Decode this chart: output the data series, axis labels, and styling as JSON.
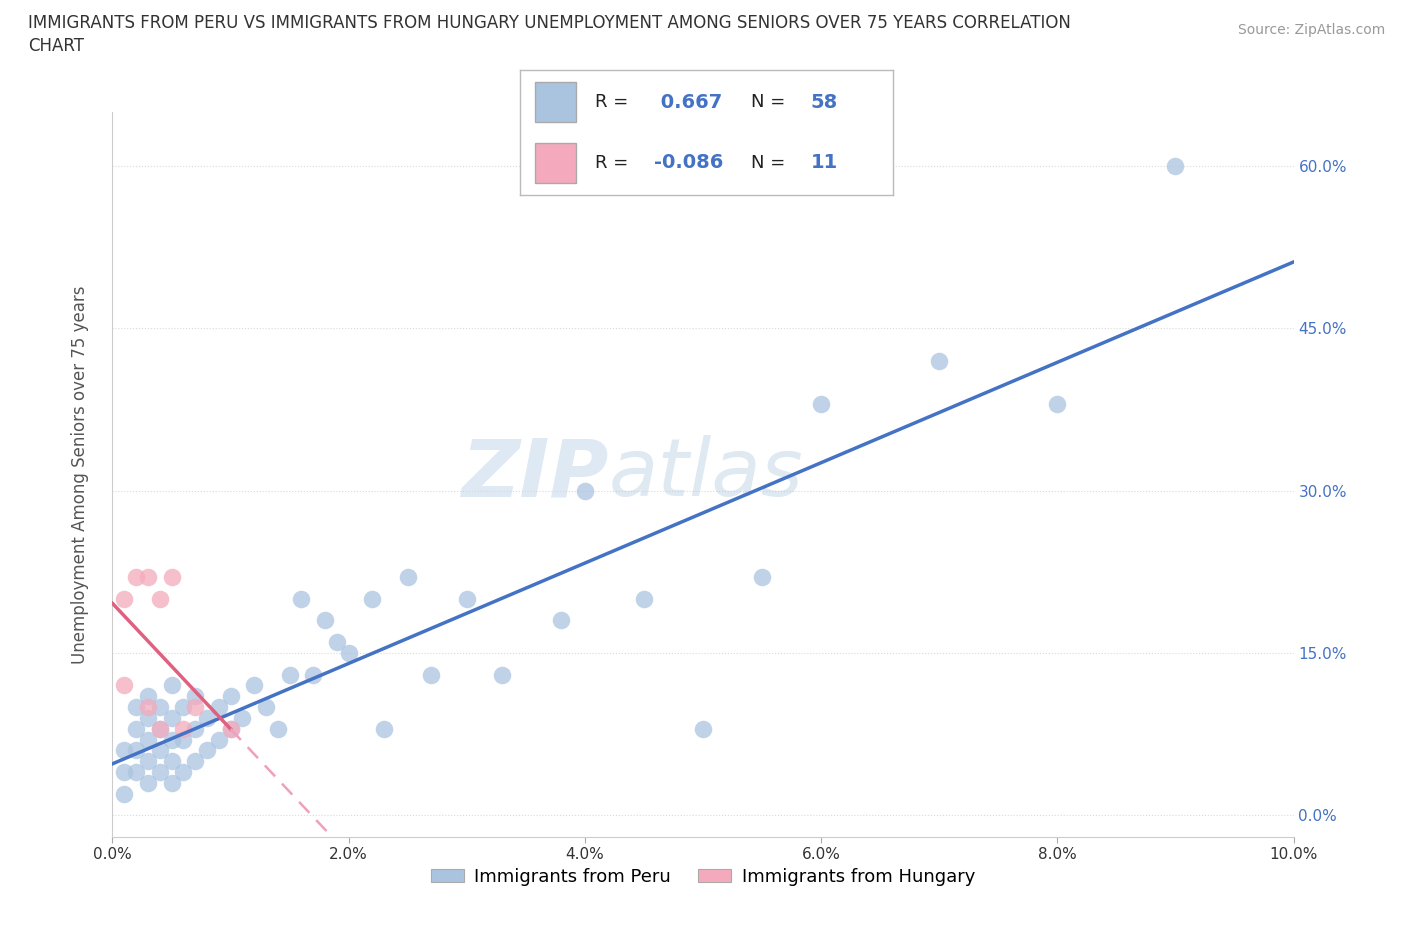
{
  "title_line1": "IMMIGRANTS FROM PERU VS IMMIGRANTS FROM HUNGARY UNEMPLOYMENT AMONG SENIORS OVER 75 YEARS CORRELATION",
  "title_line2": "CHART",
  "source": "Source: ZipAtlas.com",
  "ylabel": "Unemployment Among Seniors over 75 years",
  "xlim": [
    0.0,
    0.1
  ],
  "ylim": [
    -0.02,
    0.65
  ],
  "x_ticks": [
    0.0,
    0.02,
    0.04,
    0.06,
    0.08,
    0.1
  ],
  "x_tick_labels": [
    "0.0%",
    "2.0%",
    "4.0%",
    "6.0%",
    "8.0%",
    "10.0%"
  ],
  "y_ticks": [
    0.0,
    0.15,
    0.3,
    0.45,
    0.6
  ],
  "y_tick_labels": [
    "0.0%",
    "15.0%",
    "30.0%",
    "45.0%",
    "60.0%"
  ],
  "peru_color": "#aac4e0",
  "hungary_color": "#f4aabc",
  "peru_line_color": "#4472c4",
  "hungary_line_solid_color": "#e06080",
  "hungary_line_dash_color": "#f0a0b8",
  "peru_R": 0.667,
  "peru_N": 58,
  "hungary_R": -0.086,
  "hungary_N": 11,
  "watermark_zip": "ZIP",
  "watermark_atlas": "atlas",
  "legend_label_peru": "Immigrants from Peru",
  "legend_label_hungary": "Immigrants from Hungary",
  "peru_scatter_x": [
    0.001,
    0.001,
    0.001,
    0.002,
    0.002,
    0.002,
    0.002,
    0.003,
    0.003,
    0.003,
    0.003,
    0.003,
    0.004,
    0.004,
    0.004,
    0.004,
    0.005,
    0.005,
    0.005,
    0.005,
    0.005,
    0.006,
    0.006,
    0.006,
    0.007,
    0.007,
    0.007,
    0.008,
    0.008,
    0.009,
    0.009,
    0.01,
    0.01,
    0.011,
    0.012,
    0.013,
    0.014,
    0.015,
    0.016,
    0.017,
    0.018,
    0.019,
    0.02,
    0.022,
    0.023,
    0.025,
    0.027,
    0.03,
    0.033,
    0.038,
    0.04,
    0.045,
    0.05,
    0.055,
    0.06,
    0.07,
    0.08,
    0.09
  ],
  "peru_scatter_y": [
    0.02,
    0.04,
    0.06,
    0.04,
    0.06,
    0.08,
    0.1,
    0.03,
    0.05,
    0.07,
    0.09,
    0.11,
    0.04,
    0.06,
    0.08,
    0.1,
    0.03,
    0.05,
    0.07,
    0.09,
    0.12,
    0.04,
    0.07,
    0.1,
    0.05,
    0.08,
    0.11,
    0.06,
    0.09,
    0.07,
    0.1,
    0.08,
    0.11,
    0.09,
    0.12,
    0.1,
    0.08,
    0.13,
    0.2,
    0.13,
    0.18,
    0.16,
    0.15,
    0.2,
    0.08,
    0.22,
    0.13,
    0.2,
    0.13,
    0.18,
    0.3,
    0.2,
    0.08,
    0.22,
    0.38,
    0.42,
    0.38,
    0.6
  ],
  "hungary_scatter_x": [
    0.001,
    0.001,
    0.002,
    0.003,
    0.003,
    0.004,
    0.004,
    0.005,
    0.006,
    0.007,
    0.01
  ],
  "hungary_scatter_y": [
    0.12,
    0.2,
    0.22,
    0.1,
    0.22,
    0.2,
    0.08,
    0.22,
    0.08,
    0.1,
    0.08
  ],
  "background_color": "#ffffff",
  "grid_color": "#d0d0d0",
  "tick_color": "#4472c4"
}
